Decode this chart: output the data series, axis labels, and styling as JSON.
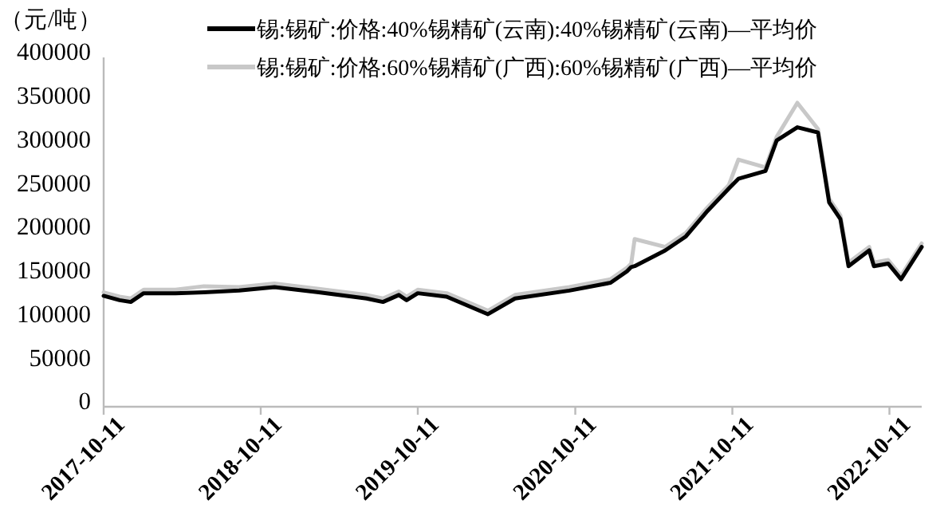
{
  "chart_data": {
    "type": "line",
    "ylabel": "（元/吨）",
    "legend": "top",
    "grid": false,
    "marker": "none",
    "line_style": "solid",
    "xlim": [
      "2017-10-11",
      "2022-12-25"
    ],
    "xticks": [
      "2017-10-11",
      "2018-10-11",
      "2019-10-11",
      "2020-10-11",
      "2021-10-11",
      "2022-10-11"
    ],
    "ylim": [
      0,
      400000
    ],
    "yticks": [
      0,
      50000,
      100000,
      150000,
      200000,
      250000,
      300000,
      350000,
      400000
    ],
    "x": [
      "2017-10-11",
      "2017-11-17",
      "2017-12-13",
      "2018-01-12",
      "2018-03-27",
      "2018-06-01",
      "2018-08-22",
      "2018-11-12",
      "2019-02-23",
      "2019-06-14",
      "2019-07-22",
      "2019-08-28",
      "2019-09-15",
      "2019-10-11",
      "2019-12-17",
      "2020-03-22",
      "2020-05-24",
      "2020-09-27",
      "2021-01-01",
      "2021-02-08",
      "2021-02-18",
      "2021-02-26",
      "2021-05-08",
      "2021-06-25",
      "2021-08-12",
      "2021-10-03",
      "2021-10-25",
      "2021-12-27",
      "2022-01-22",
      "2022-03-11",
      "2022-04-28",
      "2022-05-24",
      "2022-06-19",
      "2022-07-08",
      "2022-08-25",
      "2022-09-05",
      "2022-10-08",
      "2022-11-07",
      "2022-12-25"
    ],
    "series": [
      {
        "name": "锡:锡矿:价格:40%锡精矿(云南):40%锡精矿(云南)—平均价",
        "color": "#000000",
        "values": [
          127000,
          122000,
          120000,
          130000,
          130000,
          131000,
          133000,
          137000,
          131000,
          124000,
          120000,
          128000,
          122000,
          130000,
          126000,
          106000,
          124000,
          133000,
          142000,
          155000,
          160000,
          161000,
          179000,
          195000,
          223000,
          250000,
          261000,
          270000,
          305000,
          320000,
          314000,
          234000,
          215000,
          161000,
          179000,
          161000,
          164000,
          146000,
          183000
        ]
      },
      {
        "name": "锡:锡矿:价格:60%锡精矿(广西):60%锡精矿(广西)—平均价",
        "color": "#c8c8c8",
        "values": [
          131000,
          126000,
          124000,
          134000,
          134000,
          138000,
          137000,
          141000,
          135000,
          128000,
          124000,
          132000,
          126000,
          134000,
          130000,
          110000,
          128000,
          137000,
          146000,
          159000,
          164000,
          192000,
          183000,
          199000,
          227000,
          254000,
          283000,
          274000,
          309000,
          348000,
          318000,
          238000,
          219000,
          165000,
          183000,
          165000,
          168000,
          150000,
          187000
        ]
      }
    ]
  }
}
